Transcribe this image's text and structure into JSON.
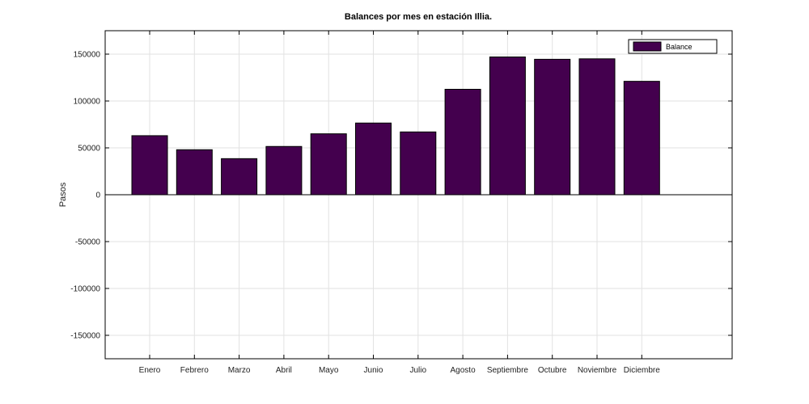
{
  "chart_data": {
    "type": "bar",
    "title": "Balances por mes en estación Illia.",
    "xlabel": "",
    "ylabel": "Pasos",
    "categories": [
      "Enero",
      "Febrero",
      "Marzo",
      "Abril",
      "Mayo",
      "Junio",
      "Julio",
      "Agosto",
      "Septiembre",
      "Octubre",
      "Noviembre",
      "Diciembre"
    ],
    "series": [
      {
        "name": "Balance",
        "values": [
          63000,
          48000,
          38500,
          51500,
          65000,
          76500,
          67000,
          112500,
          147000,
          144500,
          145000,
          121000
        ],
        "color": "#44004e"
      }
    ],
    "ylim": [
      -175000,
      175000
    ],
    "yticks": [
      -150000,
      -100000,
      -50000,
      0,
      50000,
      100000,
      150000
    ],
    "grid": true,
    "legend_position": "top-right"
  }
}
